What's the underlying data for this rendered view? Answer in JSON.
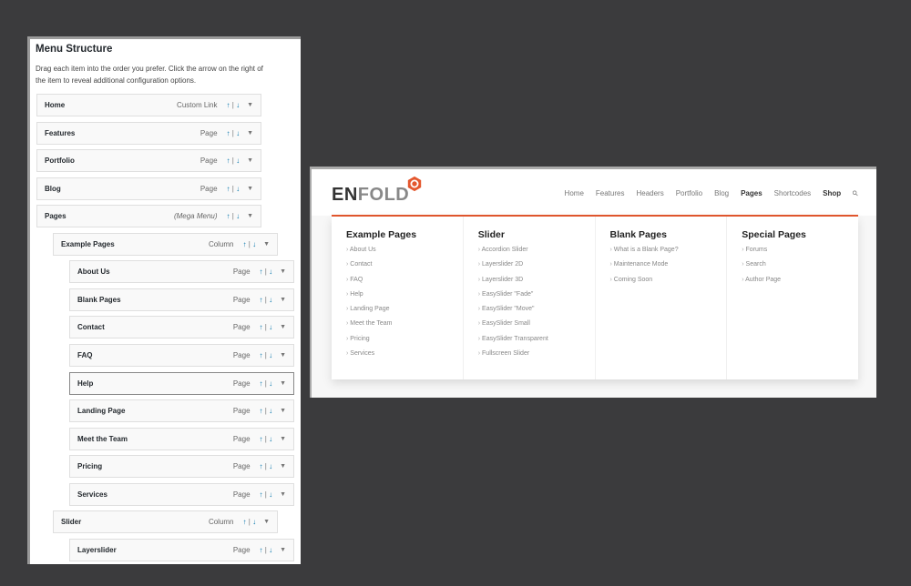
{
  "menu_structure": {
    "title": "Menu Structure",
    "description": "Drag each item into the order you prefer. Click the arrow on the right of the item to reveal additional configuration options.",
    "items": [
      {
        "label": "Home",
        "type": "Custom Link",
        "level": 0
      },
      {
        "label": "Features",
        "type": "Page",
        "level": 0
      },
      {
        "label": "Portfolio",
        "type": "Page",
        "level": 0
      },
      {
        "label": "Blog",
        "type": "Page",
        "level": 0
      },
      {
        "label": "Pages",
        "type": "(Mega Menu)",
        "level": 0,
        "italic": true
      },
      {
        "label": "Example Pages",
        "type": "Column",
        "level": 1
      },
      {
        "label": "About Us",
        "type": "Page",
        "level": 2
      },
      {
        "label": "Blank Pages",
        "type": "Page",
        "level": 2
      },
      {
        "label": "Contact",
        "type": "Page",
        "level": 2
      },
      {
        "label": "FAQ",
        "type": "Page",
        "level": 2
      },
      {
        "label": "Help",
        "type": "Page",
        "level": 2,
        "selected": true
      },
      {
        "label": "Landing Page",
        "type": "Page",
        "level": 2
      },
      {
        "label": "Meet the Team",
        "type": "Page",
        "level": 2
      },
      {
        "label": "Pricing",
        "type": "Page",
        "level": 2
      },
      {
        "label": "Services",
        "type": "Page",
        "level": 2
      },
      {
        "label": "Slider",
        "type": "Column",
        "level": 1
      },
      {
        "label": "Layerslider",
        "type": "Page",
        "level": 2
      }
    ],
    "move_up": "↑",
    "move_sep": "|",
    "move_down": "↓",
    "expand": "▼"
  },
  "site": {
    "logo_part1": "EN",
    "logo_part2": "FOLD",
    "nav": [
      {
        "label": "Home"
      },
      {
        "label": "Features"
      },
      {
        "label": "Headers"
      },
      {
        "label": "Portfolio"
      },
      {
        "label": "Blog"
      },
      {
        "label": "Pages",
        "active": true
      },
      {
        "label": "Shortcodes"
      },
      {
        "label": "Shop",
        "active": true
      }
    ],
    "search_icon": "search-icon",
    "accent": "#e4572e",
    "mega_menu": [
      {
        "title": "Example Pages",
        "items": [
          "About Us",
          "Contact",
          "FAQ",
          "Help",
          "Landing Page",
          "Meet the Team",
          "Pricing",
          "Services"
        ]
      },
      {
        "title": "Slider",
        "items": [
          "Accordion Slider",
          "Layerslider 2D",
          "Layerslider 3D",
          "EasySlider \"Fade\"",
          "EasySlider \"Move\"",
          "EasySlider Small",
          "EasySlider Transparent",
          "Fullscreen Slider"
        ]
      },
      {
        "title": "Blank Pages",
        "items": [
          "What is a Blank Page?",
          "Maintenance Mode",
          "Coming Soon"
        ]
      },
      {
        "title": "Special Pages",
        "items": [
          "Forums",
          "Search",
          "Author Page"
        ]
      }
    ]
  }
}
